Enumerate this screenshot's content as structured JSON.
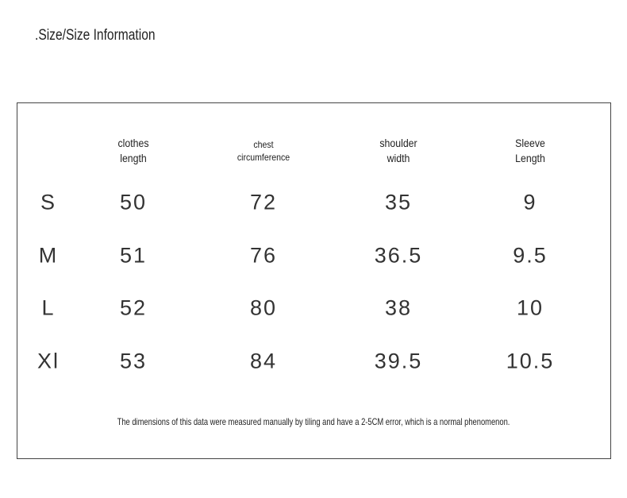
{
  "header": {
    "title": ".Size/Size Information"
  },
  "table": {
    "columns": [
      "clothes length",
      "chest circumference",
      "shoulder width",
      "Sleeve Length"
    ],
    "rows": [
      [
        "S",
        50,
        72,
        35,
        9
      ],
      [
        "M",
        51,
        76,
        36.5,
        9.5
      ],
      [
        "L",
        52,
        80,
        38,
        10
      ],
      [
        "Xl",
        53,
        84,
        39.5,
        10.5
      ]
    ]
  },
  "footnote": "The dimensions of this data were measured manually by tiling and have a 2-5CM error, which is a normal phenomenon."
}
